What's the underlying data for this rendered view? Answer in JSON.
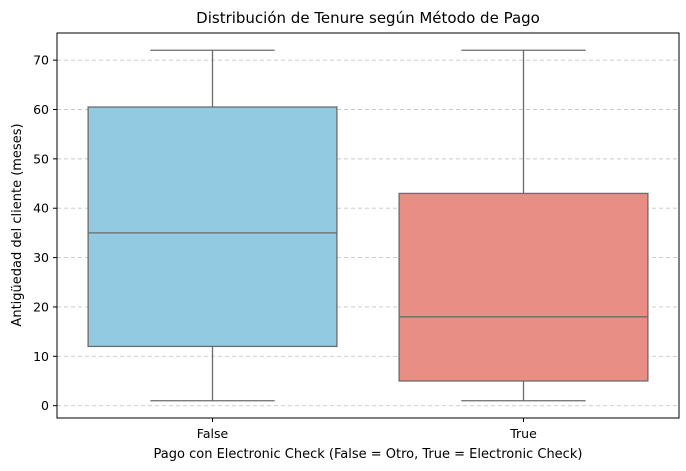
{
  "chart_data": {
    "type": "boxplot",
    "title": "Distribución de Tenure según Método de Pago",
    "xlabel": "Pago con Electronic Check (False = Otro, True = Electronic Check)",
    "ylabel": "Antigüedad del cliente (meses)",
    "ylim": [
      -2.5,
      75.5
    ],
    "yticks": [
      0,
      10,
      20,
      30,
      40,
      50,
      60,
      70
    ],
    "grid": "y-dashed",
    "boxes": [
      {
        "category": "False",
        "min": 1,
        "q1": 12,
        "median": 35,
        "q3": 60.5,
        "max": 72,
        "color": "#92cbe1"
      },
      {
        "category": "True",
        "min": 1,
        "q1": 5,
        "median": 18,
        "q3": 43,
        "max": 72,
        "color": "#e98e84"
      }
    ]
  }
}
